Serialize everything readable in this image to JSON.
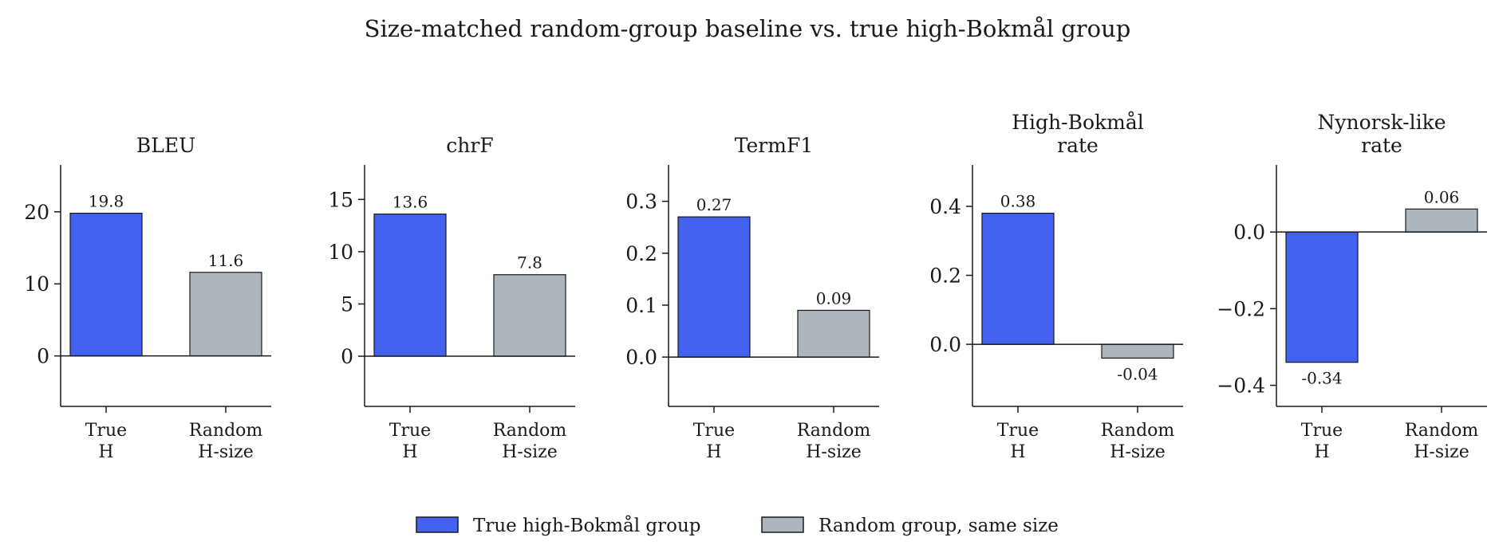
{
  "chart_data": {
    "type": "bar",
    "title": "Size-matched random-group baseline vs. true high-Bokmål group",
    "categories": [
      [
        "True",
        "H"
      ],
      [
        "Random",
        "H-size"
      ]
    ],
    "colors": [
      "#4361ee",
      "#adb5bd"
    ],
    "legend": {
      "placement": "bottom-center",
      "entries": [
        "True high-Bokmål group",
        "Random group, same size"
      ]
    },
    "panels": [
      {
        "title": [
          "BLEU"
        ],
        "values": [
          19.8,
          11.6
        ],
        "labels": [
          "19.8",
          "11.6"
        ],
        "ylim": [
          -7,
          26.5
        ],
        "ticks": [
          0,
          10,
          20
        ],
        "tick_labels": [
          "0",
          "10",
          "20"
        ]
      },
      {
        "title": [
          "chrF"
        ],
        "values": [
          13.6,
          7.8
        ],
        "labels": [
          "13.6",
          "7.8"
        ],
        "ylim": [
          -4.8,
          18.3
        ],
        "ticks": [
          0,
          5,
          10,
          15
        ],
        "tick_labels": [
          "0",
          "5",
          "10",
          "15"
        ]
      },
      {
        "title": [
          "TermF1"
        ],
        "values": [
          0.27,
          0.09
        ],
        "labels": [
          "0.27",
          "0.09"
        ],
        "ylim": [
          -0.095,
          0.37
        ],
        "ticks": [
          0,
          0.1,
          0.2,
          0.3
        ],
        "tick_labels": [
          "0.0",
          "0.1",
          "0.2",
          "0.3"
        ]
      },
      {
        "title": [
          "High-Bokmål",
          "rate"
        ],
        "values": [
          0.38,
          -0.04
        ],
        "labels": [
          "0.38",
          "-0.04"
        ],
        "ylim": [
          -0.18,
          0.52
        ],
        "ticks": [
          0,
          0.2,
          0.4
        ],
        "tick_labels": [
          "0.0",
          "0.2",
          "0.4"
        ]
      },
      {
        "title": [
          "Nynorsk-like",
          "rate"
        ],
        "values": [
          -0.34,
          0.06
        ],
        "labels": [
          "-0.34",
          "0.06"
        ],
        "ylim": [
          -0.455,
          0.175
        ],
        "ticks": [
          -0.4,
          -0.2,
          0
        ],
        "tick_labels": [
          "−0.4",
          "−0.2",
          "0.0"
        ]
      }
    ]
  }
}
